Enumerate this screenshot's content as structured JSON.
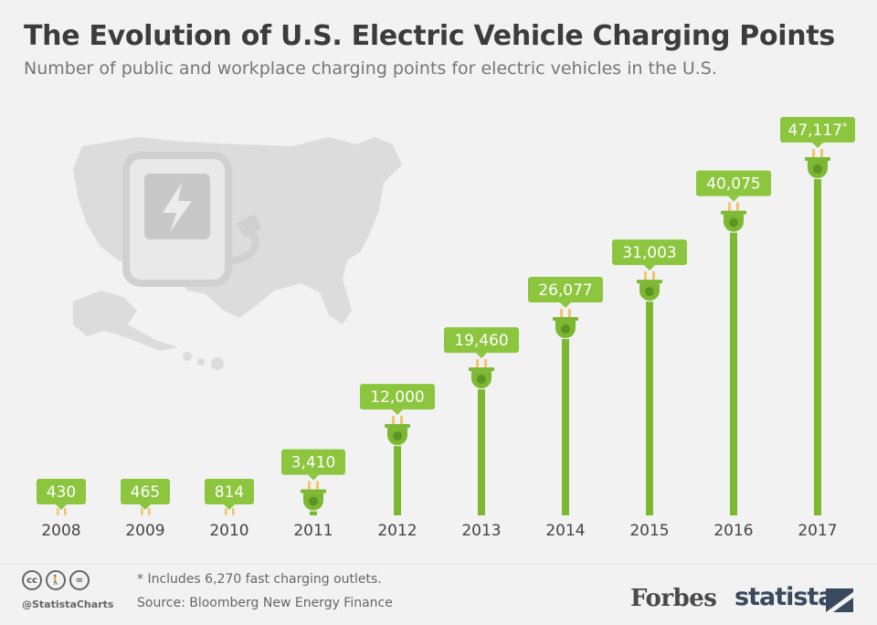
{
  "header": {
    "title": "The Evolution of U.S. Electric Vehicle Charging Points",
    "subtitle": "Number of public and workplace charging points for electric vehicles in the U.S."
  },
  "chart_data": {
    "type": "bar",
    "title": "The Evolution of U.S. Electric Vehicle Charging Points",
    "subtitle": "Number of public and workplace charging points for electric vehicles in the U.S.",
    "categories": [
      "2008",
      "2009",
      "2010",
      "2011",
      "2012",
      "2013",
      "2014",
      "2015",
      "2016",
      "2017"
    ],
    "values": [
      430,
      465,
      814,
      3410,
      12000,
      19460,
      26077,
      31003,
      40075,
      47117
    ],
    "data_labels": [
      "430",
      "465",
      "814",
      "3,410",
      "12,000",
      "19,460",
      "26,077",
      "31,003",
      "40,075",
      "47,117*"
    ],
    "xlabel": "",
    "ylabel": "",
    "ylim": [
      0,
      50000
    ],
    "grid": false,
    "bar_style": "plug cable",
    "colors": {
      "bar": "#7db832",
      "label_bg": "#8cc63f",
      "plug_prongs": "#f5c36b"
    }
  },
  "footer": {
    "note": "* Includes 6,270 fast charging outlets.",
    "source": "Source: Bloomberg New Energy Finance",
    "handle": "@StatistaCharts",
    "forbes": "Forbes",
    "statista": "statista",
    "license_icons": [
      "cc-icon",
      "by-icon",
      "equals-icon"
    ]
  }
}
